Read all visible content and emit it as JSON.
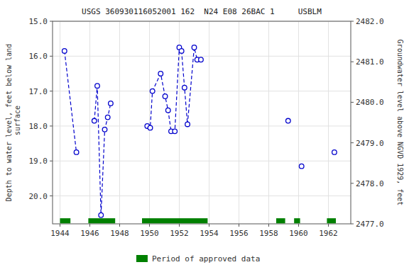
{
  "chart_data": {
    "type": "line",
    "title": "USGS 360930116052001 162  N24 E08 26BAC 1     USBLM",
    "ylabel": "Depth to water level, feet below land\n surface",
    "y2label": "Groundwater level above NGVD 1929, feet",
    "xlim": [
      1943.5,
      1963.5
    ],
    "xticks": [
      1944,
      1946,
      1948,
      1950,
      1952,
      1954,
      1956,
      1958,
      1960,
      1962
    ],
    "ylim": [
      20.8,
      15.0
    ],
    "yticks": [
      {
        "value": 15.0,
        "label": "15.0"
      },
      {
        "value": 16.0,
        "label": "16.0"
      },
      {
        "value": 17.0,
        "label": "17.0"
      },
      {
        "value": 18.0,
        "label": "18.0"
      },
      {
        "value": 19.0,
        "label": "19.0"
      },
      {
        "value": 20.0,
        "label": "20.0"
      }
    ],
    "y2lim": [
      2477.0,
      2482.0
    ],
    "y2ticks": [
      {
        "value": 2482.0,
        "label": "2482.0"
      },
      {
        "value": 2481.0,
        "label": "2481.0"
      },
      {
        "value": 2480.0,
        "label": "2480.0"
      },
      {
        "value": 2479.0,
        "label": "2479.0"
      },
      {
        "value": 2478.0,
        "label": "2478.0"
      },
      {
        "value": 2477.0,
        "label": "2477.0"
      }
    ],
    "grid": true,
    "legend": "bottom",
    "series": [
      {
        "type": "line",
        "color": "#0000cc",
        "marker": "circle",
        "line_style": "dashed",
        "x": [
          1944.3,
          1945.1,
          null,
          1946.3,
          1946.5,
          1946.75,
          1947.0,
          1947.2,
          1947.4,
          null,
          1949.85,
          1950.05,
          1950.2,
          1950.75,
          1951.05,
          1951.25,
          1951.45,
          1951.7,
          1952.0,
          1952.15,
          1952.35,
          1952.55,
          1953.0,
          1953.2,
          1953.45,
          null,
          1959.3,
          null,
          1960.2,
          null,
          1962.4
        ],
        "values": [
          15.85,
          18.75,
          null,
          17.85,
          16.85,
          20.55,
          18.1,
          17.75,
          17.35,
          null,
          18.0,
          18.05,
          17.0,
          16.5,
          17.15,
          17.55,
          18.15,
          18.15,
          15.75,
          15.85,
          16.9,
          17.95,
          15.75,
          16.1,
          16.1,
          null,
          17.85,
          null,
          19.15,
          null,
          18.75
        ]
      },
      {
        "name": "Period of approved data",
        "type": "range",
        "color": "#008000",
        "start": [
          1944.0,
          1945.9,
          1949.5,
          1958.5,
          1959.7,
          1961.9
        ],
        "end": [
          1944.7,
          1947.7,
          1953.9,
          1959.1,
          1960.1,
          1962.5
        ]
      }
    ]
  }
}
